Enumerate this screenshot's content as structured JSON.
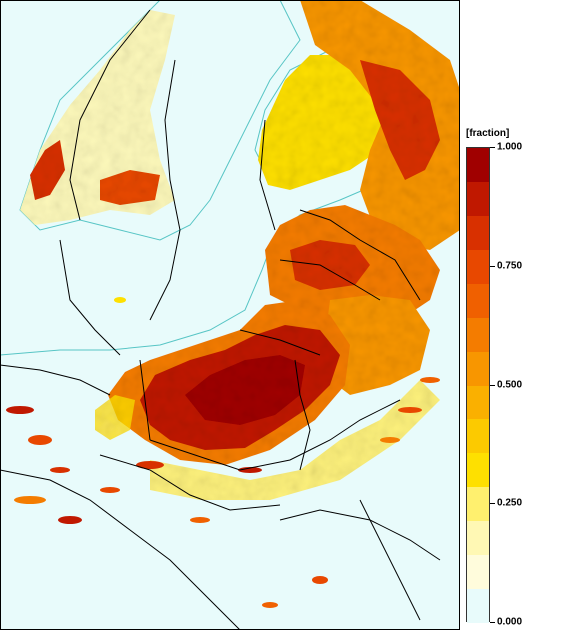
{
  "map": {
    "type": "choropleth-raster",
    "region": "Baltic Sea and Central / Eastern Europe",
    "background_color": "#e8fbfb",
    "coast_color": "#57c5c5",
    "border_color": "#000000"
  },
  "legend": {
    "title": "[fraction]",
    "labels": [
      "1.000",
      "0.750",
      "0.500",
      "0.250",
      "0.000"
    ],
    "range": [
      0,
      1
    ],
    "colors": [
      "#a00000",
      "#c01800",
      "#d83000",
      "#e84800",
      "#f06000",
      "#f47c00",
      "#f89600",
      "#fab000",
      "#fcca00",
      "#fee000",
      "#fff06e",
      "#fff8b4",
      "#fffcdc",
      "#e8fbfb"
    ]
  }
}
